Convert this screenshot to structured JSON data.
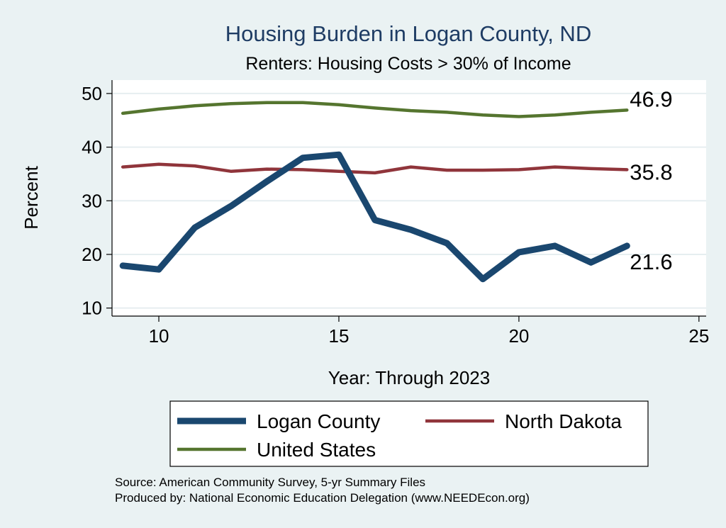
{
  "chart_data": {
    "type": "line",
    "title": "Housing Burden in Logan County, ND",
    "subtitle": "Renters: Housing Costs > 30% of Income",
    "xlabel": "Year: Through 2023",
    "ylabel": "Percent",
    "xlim": [
      8.7,
      25.2
    ],
    "ylim": [
      8.5,
      52.5
    ],
    "xticks": [
      10,
      15,
      20,
      25
    ],
    "yticks": [
      10,
      20,
      30,
      40,
      50
    ],
    "grid": true,
    "legend_position": "bottom",
    "x": [
      9,
      10,
      11,
      12,
      13,
      14,
      15,
      16,
      17,
      18,
      19,
      20,
      21,
      22,
      23
    ],
    "series": [
      {
        "name": "Logan County",
        "color": "#1a476f",
        "values": [
          17.9,
          17.2,
          25.0,
          29.0,
          33.6,
          38.0,
          38.6,
          26.4,
          24.6,
          22.1,
          15.4,
          20.4,
          21.6,
          18.5,
          21.6
        ],
        "end_label": "21.6"
      },
      {
        "name": "North Dakota",
        "color": "#90353b",
        "values": [
          36.3,
          36.8,
          36.5,
          35.5,
          35.9,
          35.8,
          35.5,
          35.2,
          36.3,
          35.7,
          35.7,
          35.8,
          36.3,
          36.0,
          35.8
        ],
        "end_label": "35.8"
      },
      {
        "name": "United States",
        "color": "#55752f",
        "values": [
          46.3,
          47.1,
          47.7,
          48.1,
          48.3,
          48.3,
          47.9,
          47.3,
          46.8,
          46.5,
          46.0,
          45.7,
          46.0,
          46.5,
          46.9
        ],
        "end_label": "46.9"
      }
    ]
  },
  "notes": {
    "source": "Source: American Community Survey, 5-yr Summary Files",
    "produced": "Produced by: National Economic Education Delegation (www.NEEDEcon.org)"
  }
}
